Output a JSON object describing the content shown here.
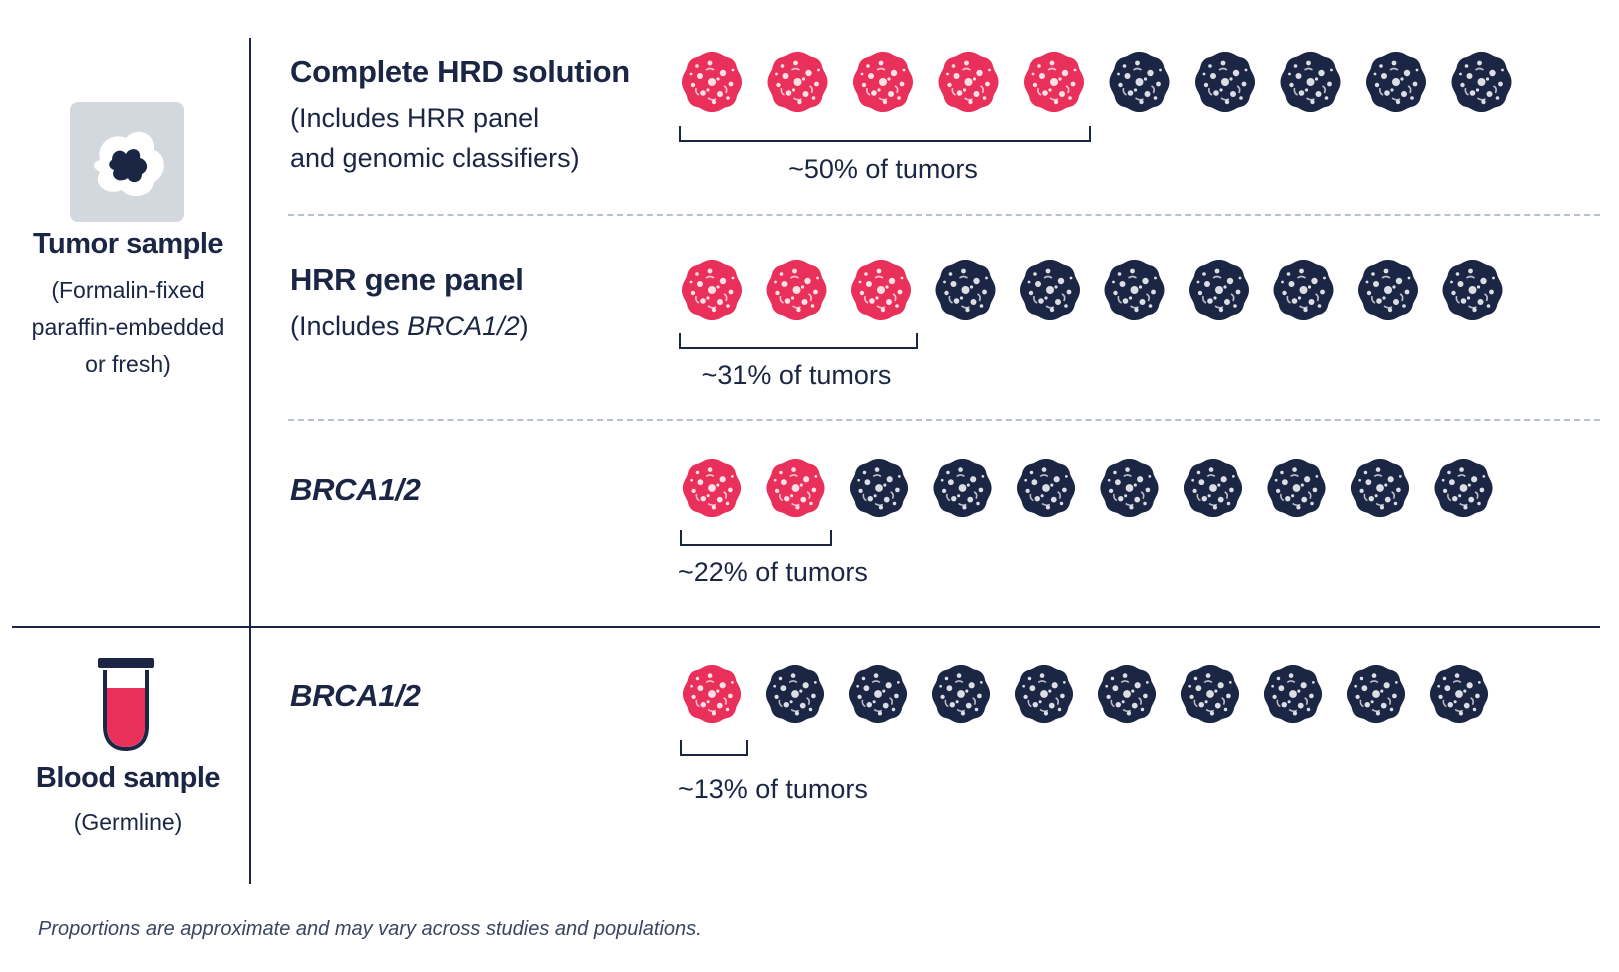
{
  "chart_data": {
    "type": "pictogram",
    "units_per_row": 10,
    "colors": {
      "highlighted": "#e8305b",
      "other": "#1a2644"
    },
    "groups": [
      {
        "name": "Tumor sample",
        "description": [
          "(Formalin-fixed",
          "paraffin-embedded",
          "or fresh)"
        ],
        "icon": "tumor-tissue-icon",
        "rows": [
          {
            "title": "Complete HRD solution",
            "subtitle_lines": [
              [
                "(Includes HRR panel",
                ""
              ],
              [
                "and genomic classifiers)",
                ""
              ]
            ],
            "highlighted": 5,
            "label": "~50% of tumors"
          },
          {
            "title": "HRR gene panel",
            "subtitle_lines": [
              [
                "(Includes ",
                "BRCA1/2",
                ")"
              ]
            ],
            "highlighted": 3,
            "label": "~31% of tumors"
          },
          {
            "title_italic": "BRCA1/2",
            "subtitle_lines": [],
            "highlighted": 2,
            "label": "~22% of tumors"
          }
        ]
      },
      {
        "name": "Blood sample",
        "description": [
          "(Germline)"
        ],
        "icon": "blood-tube-icon",
        "rows": [
          {
            "title_italic": "BRCA1/2",
            "subtitle_lines": [],
            "highlighted": 1,
            "label": "~13% of tumors"
          }
        ]
      }
    ]
  },
  "footnote": "Proportions are approximate and may vary across studies and populations."
}
